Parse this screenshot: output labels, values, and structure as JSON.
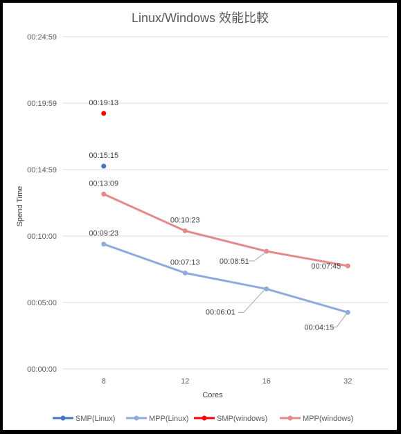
{
  "chart_data": {
    "type": "line",
    "title": "Linux/Windows 效能比較",
    "xlabel": "Cores",
    "ylabel": "Spend Time",
    "categories": [
      "8",
      "12",
      "16",
      "32"
    ],
    "y_ticks": [
      "00:00:00",
      "00:05:00",
      "00:10:00",
      "00:14:59",
      "00:19:59",
      "00:24:59"
    ],
    "ylim_seconds": [
      0,
      1499
    ],
    "grid": "horizontal",
    "legend_position": "bottom",
    "series": [
      {
        "name": "SMP(Linux)",
        "color": "#4472c4",
        "marker_only": true,
        "values": [
          915,
          null,
          null,
          null
        ],
        "labels": [
          "00:15:15",
          null,
          null,
          null
        ]
      },
      {
        "name": "MPP(Linux)",
        "color": "#8faadc",
        "marker_only": false,
        "values": [
          563,
          433,
          361,
          255
        ],
        "labels": [
          "00:09:23",
          "00:07:13",
          "00:06:01",
          "00:04:15"
        ]
      },
      {
        "name": "SMP(windows)",
        "color": "#ff0000",
        "marker_only": true,
        "values": [
          1153,
          null,
          null,
          null
        ],
        "labels": [
          "00:19:13",
          null,
          null,
          null
        ]
      },
      {
        "name": "MPP(windows)",
        "color": "#e58a8a",
        "marker_only": false,
        "values": [
          789,
          623,
          531,
          465
        ],
        "labels": [
          "00:13:09",
          "00:10:23",
          "00:08:51",
          "00:07:45"
        ]
      }
    ]
  }
}
